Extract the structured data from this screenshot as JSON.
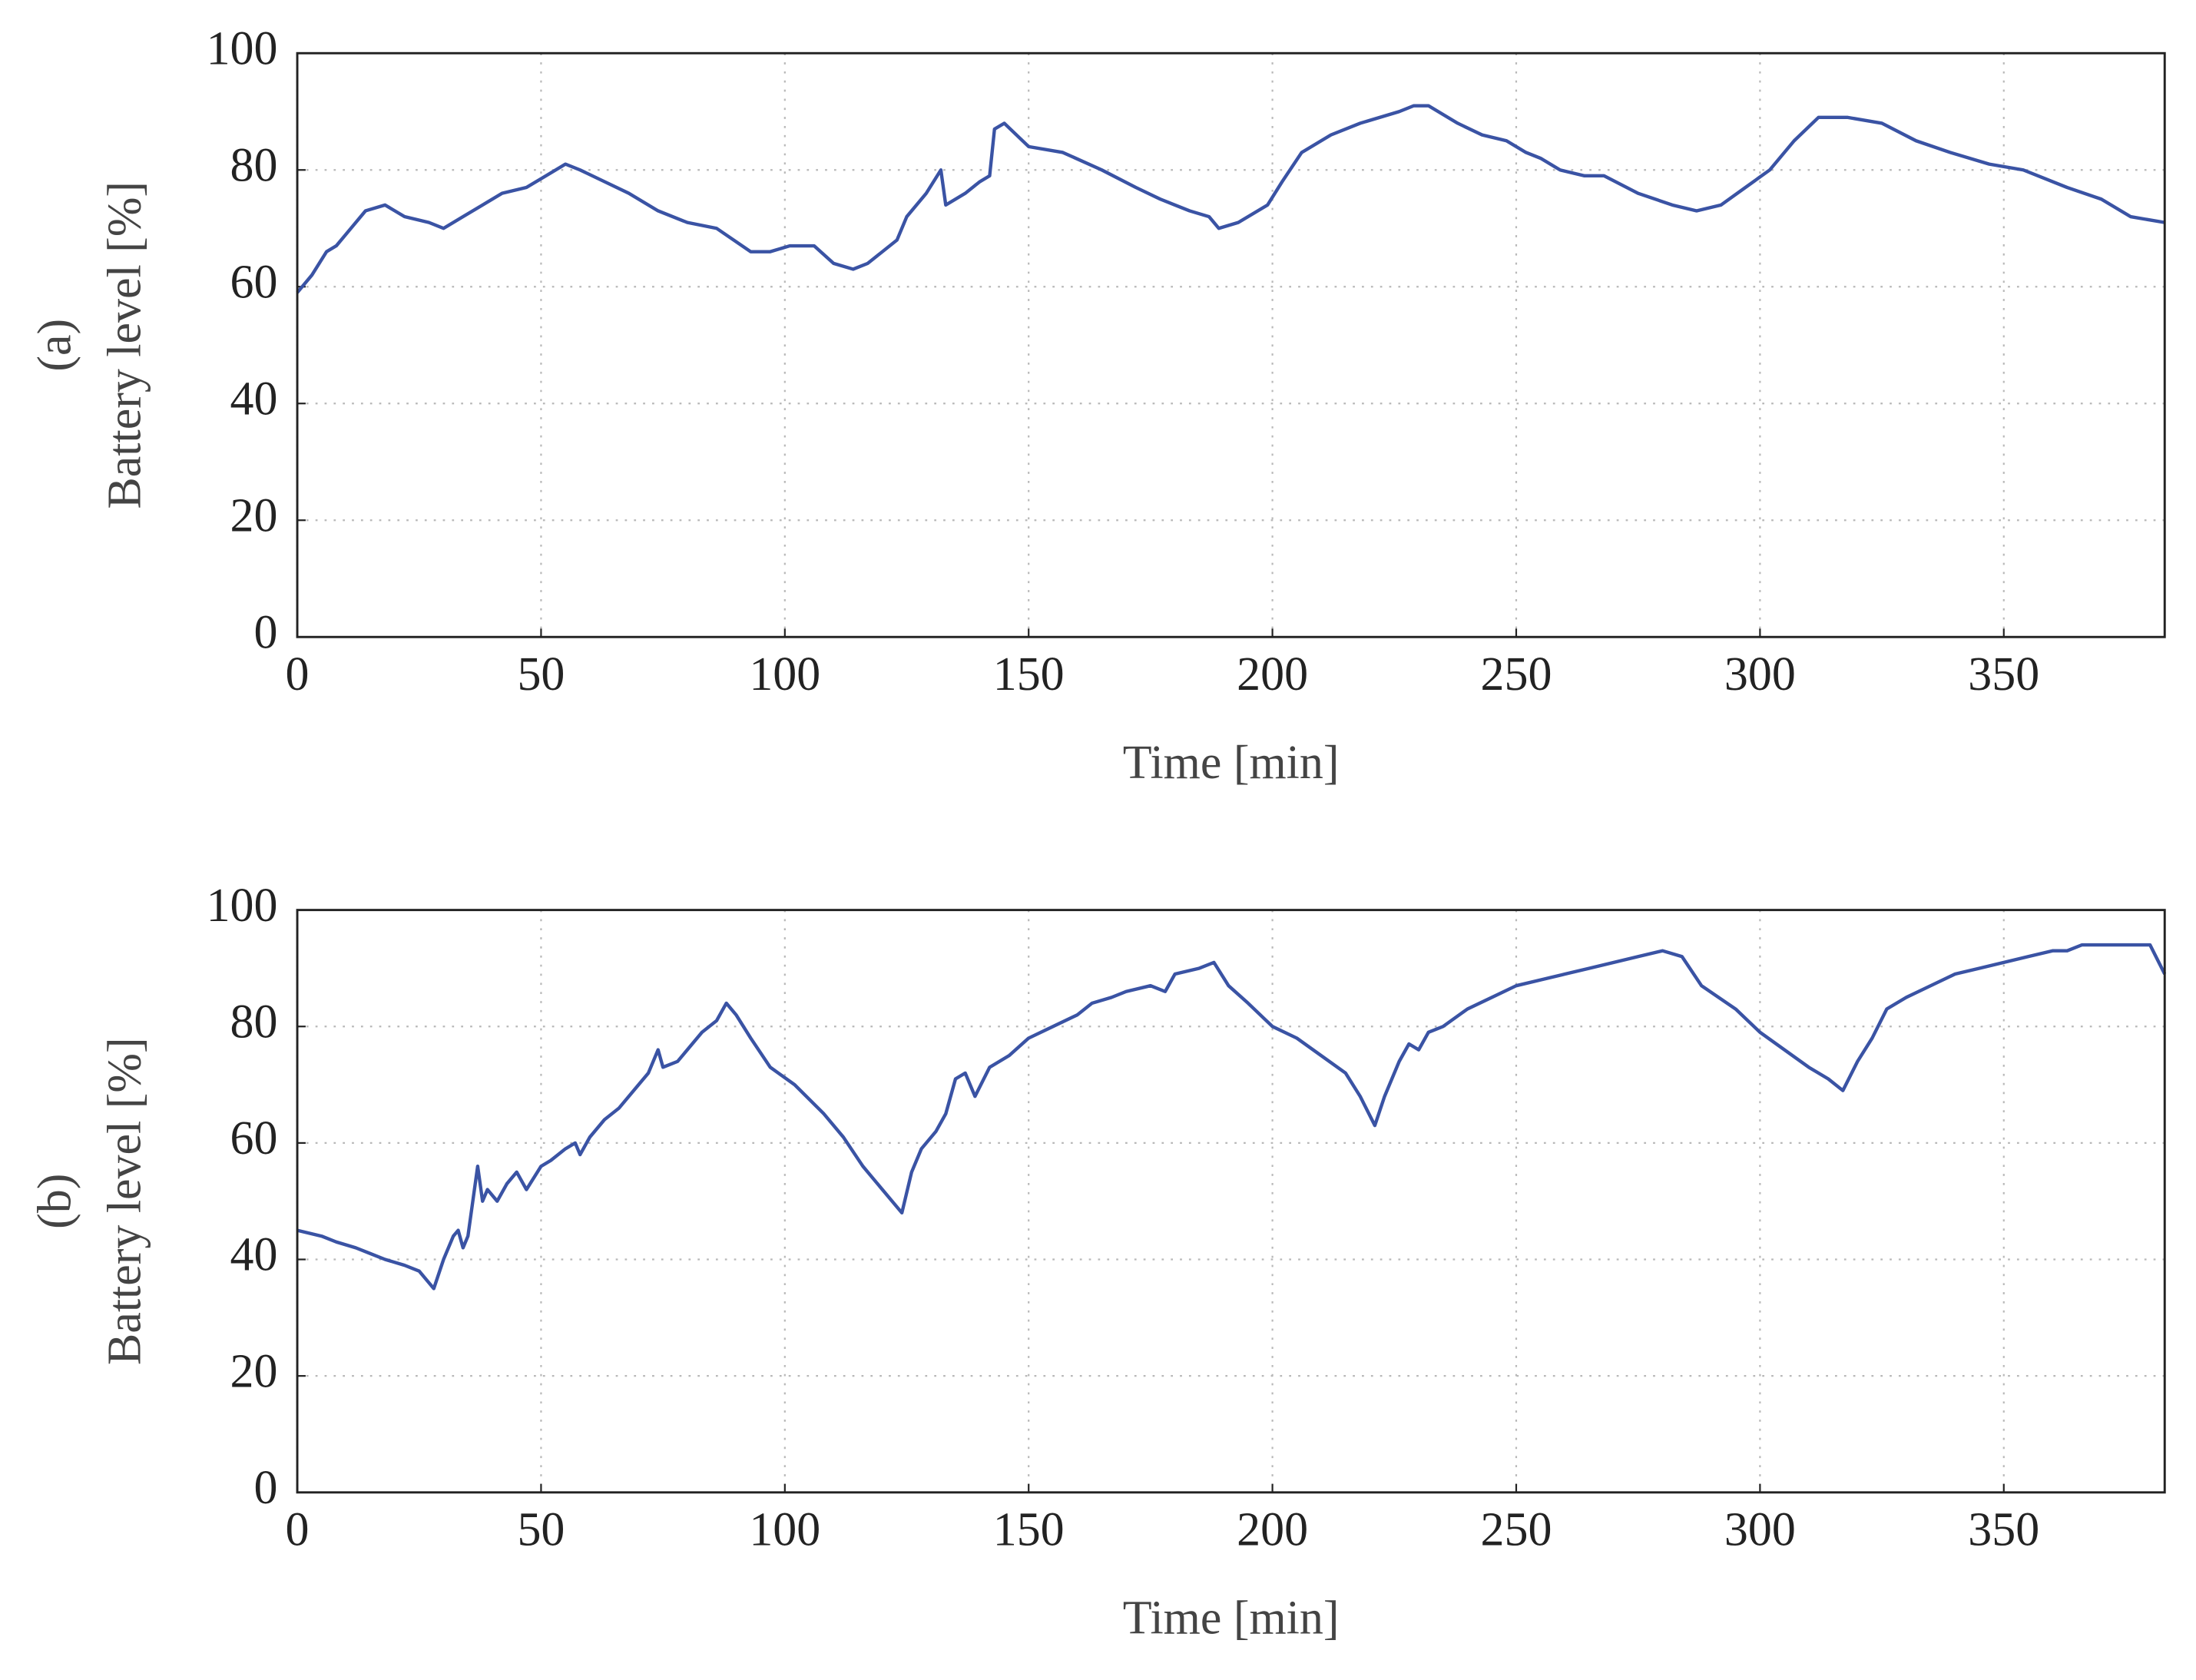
{
  "chart_data": [
    {
      "type": "line",
      "panel_label": "(a)",
      "xlabel": "Time [min]",
      "ylabel": "Battery level [%]",
      "xlim": [
        0,
        383
      ],
      "ylim": [
        0,
        100
      ],
      "xticks": [
        0,
        50,
        100,
        150,
        200,
        250,
        300,
        350
      ],
      "yticks": [
        0,
        20,
        40,
        60,
        80,
        100
      ],
      "grid": true,
      "series": [
        {
          "color": "#3a53a4",
          "x": [
            0,
            3,
            6,
            8,
            11,
            14,
            18,
            22,
            27,
            30,
            34,
            38,
            42,
            47,
            51,
            55,
            58,
            63,
            68,
            74,
            80,
            86,
            93,
            97,
            101,
            106,
            110,
            114,
            117,
            123,
            125,
            129,
            132,
            133,
            137,
            140,
            142,
            143,
            145,
            150,
            157,
            165,
            172,
            177,
            183,
            187,
            189,
            193,
            199,
            202,
            206,
            212,
            218,
            226,
            229,
            232,
            238,
            243,
            248,
            252,
            255,
            259,
            264,
            268,
            275,
            282,
            287,
            292,
            297,
            302,
            307,
            312,
            318,
            325,
            332,
            339,
            347,
            354,
            363,
            370,
            376,
            383
          ],
          "values": [
            59,
            62,
            66,
            67,
            70,
            73,
            74,
            72,
            71,
            70,
            72,
            74,
            76,
            77,
            79,
            81,
            80,
            78,
            76,
            73,
            71,
            70,
            66,
            66,
            67,
            67,
            64,
            63,
            64,
            68,
            72,
            76,
            80,
            74,
            76,
            78,
            79,
            87,
            88,
            84,
            83,
            80,
            77,
            75,
            73,
            72,
            70,
            71,
            74,
            78,
            83,
            86,
            88,
            90,
            91,
            91,
            88,
            86,
            85,
            83,
            82,
            80,
            79,
            79,
            76,
            74,
            73,
            74,
            77,
            80,
            85,
            89,
            89,
            88,
            85,
            83,
            81,
            80,
            77,
            75,
            72,
            71
          ]
        }
      ]
    },
    {
      "type": "line",
      "panel_label": "(b)",
      "xlabel": "Time [min]",
      "ylabel": "Battery level [%]",
      "xlim": [
        0,
        383
      ],
      "ylim": [
        0,
        100
      ],
      "xticks": [
        0,
        50,
        100,
        150,
        200,
        250,
        300,
        350
      ],
      "yticks": [
        0,
        20,
        40,
        60,
        80,
        100
      ],
      "grid": true,
      "series": [
        {
          "color": "#3a53a4",
          "x": [
            0,
            5,
            8,
            12,
            15,
            18,
            22,
            25,
            27,
            28,
            30,
            32,
            33,
            34,
            35,
            36,
            37,
            38,
            39,
            41,
            43,
            45,
            47,
            50,
            52,
            55,
            57,
            58,
            60,
            63,
            66,
            70,
            72,
            74,
            75,
            78,
            80,
            83,
            86,
            88,
            90,
            93,
            97,
            102,
            108,
            112,
            116,
            120,
            124,
            126,
            128,
            131,
            133,
            135,
            137,
            139,
            142,
            146,
            150,
            155,
            160,
            163,
            167,
            170,
            175,
            178,
            180,
            185,
            188,
            191,
            195,
            200,
            205,
            210,
            215,
            218,
            221,
            223,
            226,
            228,
            230,
            232,
            235,
            240,
            245,
            250,
            255,
            260,
            265,
            270,
            275,
            280,
            284,
            288,
            295,
            300,
            305,
            310,
            314,
            317,
            320,
            323,
            326,
            330,
            335,
            340,
            345,
            350,
            355,
            360,
            363,
            366,
            370,
            375,
            380,
            383
          ],
          "values": [
            45,
            44,
            43,
            42,
            41,
            40,
            39,
            38,
            36,
            35,
            40,
            44,
            45,
            42,
            44,
            50,
            56,
            50,
            52,
            50,
            53,
            55,
            52,
            56,
            57,
            59,
            60,
            58,
            61,
            64,
            66,
            70,
            72,
            76,
            73,
            74,
            76,
            79,
            81,
            84,
            82,
            78,
            73,
            70,
            65,
            61,
            56,
            52,
            48,
            55,
            59,
            62,
            65,
            71,
            72,
            68,
            73,
            75,
            78,
            80,
            82,
            84,
            85,
            86,
            87,
            86,
            89,
            90,
            91,
            87,
            84,
            80,
            78,
            75,
            72,
            68,
            63,
            68,
            74,
            77,
            76,
            79,
            80,
            83,
            85,
            87,
            88,
            89,
            90,
            91,
            92,
            93,
            92,
            87,
            83,
            79,
            76,
            73,
            71,
            69,
            74,
            78,
            83,
            85,
            87,
            89,
            90,
            91,
            92,
            93,
            93,
            94,
            94,
            94,
            94,
            89
          ]
        }
      ]
    }
  ]
}
